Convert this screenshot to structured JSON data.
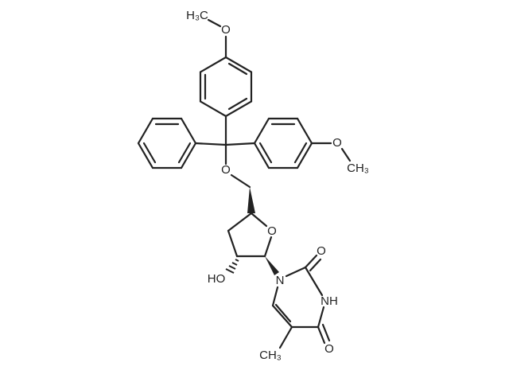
{
  "atoms": [
    {
      "label": "H₃C"
    },
    {
      "label": "O"
    },
    {
      "label": "O"
    },
    {
      "label": "CH₃"
    },
    {
      "label": "O"
    },
    {
      "label": "O"
    },
    {
      "label": "HO"
    },
    {
      "label": "N"
    },
    {
      "label": "O"
    },
    {
      "label": "NH"
    },
    {
      "label": "O"
    },
    {
      "label": "CH₃"
    }
  ]
}
